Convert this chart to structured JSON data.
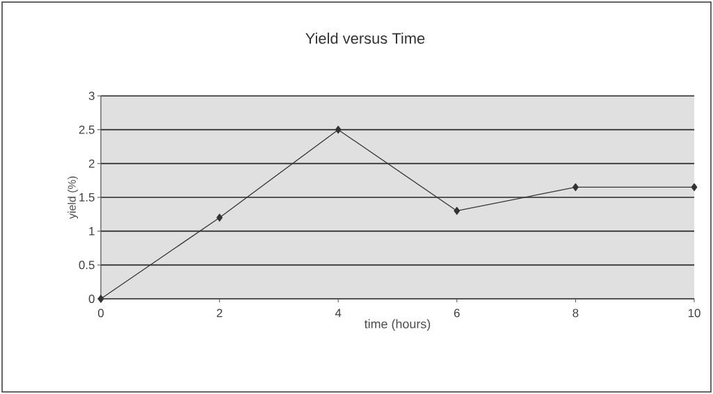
{
  "chart_data": {
    "type": "line",
    "title": "Yield versus Time",
    "xlabel": "time (hours)",
    "ylabel": "yield (%)",
    "x": [
      0,
      2,
      4,
      6,
      8,
      10
    ],
    "values": [
      0,
      1.2,
      2.5,
      1.3,
      1.65,
      1.65
    ],
    "color": "#333333",
    "xlim": [
      0,
      10
    ],
    "ylim": [
      0,
      3
    ],
    "xticks": [
      0,
      2,
      4,
      6,
      8,
      10
    ],
    "yticks": [
      0,
      0.5,
      1,
      1.5,
      2,
      2.5,
      3
    ],
    "grid": "y",
    "marker": "diamond",
    "line_style": "solid"
  }
}
